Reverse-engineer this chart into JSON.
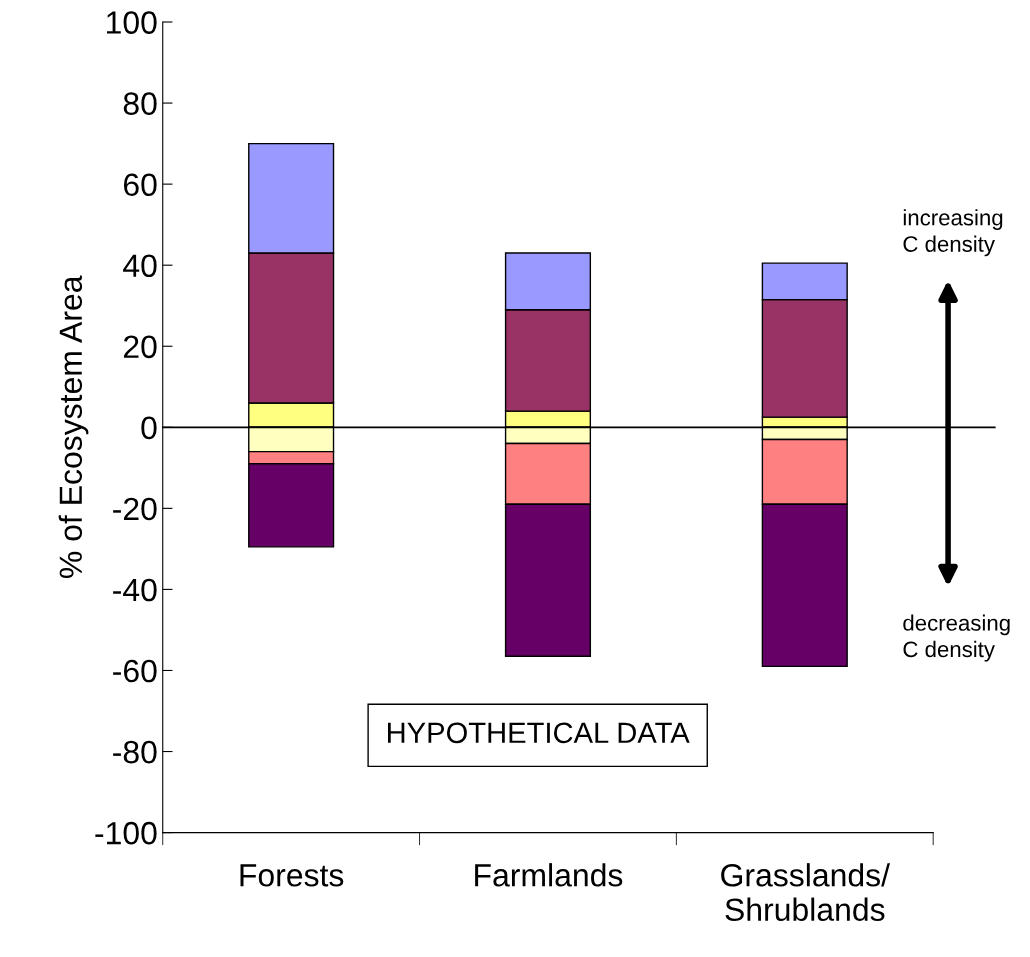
{
  "chart_data": {
    "type": "bar",
    "stacked": true,
    "ylabel": "% of Ecosystem Area",
    "categories": [
      "Forests",
      "Farmlands",
      "Grasslands/\nShrublands"
    ],
    "series": [
      {
        "color": "#ffff80",
        "values": [
          6,
          4,
          2.5
        ]
      },
      {
        "color": "#993366",
        "values": [
          37,
          25,
          29
        ]
      },
      {
        "color": "#9999ff",
        "values": [
          27,
          14,
          9
        ]
      },
      {
        "color": "#ffffc0",
        "values": [
          -6,
          -4,
          -3
        ]
      },
      {
        "color": "#ff8080",
        "values": [
          -3,
          -15,
          -16
        ]
      },
      {
        "color": "#660066",
        "values": [
          -20.5,
          -37.5,
          -40
        ]
      }
    ],
    "ylim": [
      -100,
      100
    ],
    "yticks": [
      -100,
      -80,
      -60,
      -40,
      -20,
      0,
      20,
      40,
      60,
      80,
      100
    ],
    "ref_lines": [
      {
        "axis": "y",
        "value": 0,
        "color": "#000000"
      }
    ],
    "annotations": [
      "increasing\nC density",
      "decreasing\nC density",
      "HYPOTHETICAL DATA"
    ],
    "grid": false,
    "legend": false
  }
}
